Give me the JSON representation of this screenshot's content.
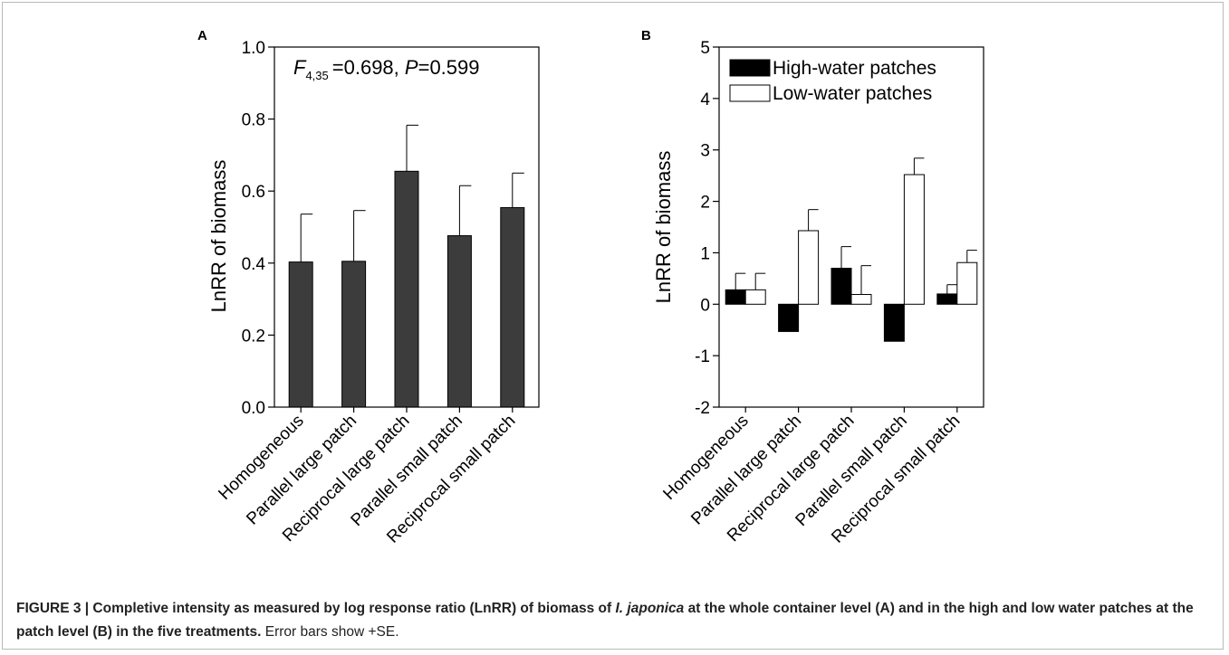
{
  "chart_data": [
    {
      "type": "bar",
      "panel_label": "A",
      "ylabel": "LnRR of biomass",
      "categories": [
        "Homogeneous",
        "Parallel large patch",
        "Reciprocal large patch",
        "Parallel small patch",
        "Reciprocal small patch"
      ],
      "series": [
        {
          "values": [
            0.403,
            0.405,
            0.655,
            0.476,
            0.554
          ],
          "errors": [
            0.133,
            0.141,
            0.128,
            0.139,
            0.096
          ],
          "color": "#3c3c3c"
        }
      ],
      "ylim": [
        0.0,
        1.0
      ],
      "yticks": [
        "0.0",
        "0.2",
        "0.4",
        "0.6",
        "0.8",
        "1.0"
      ],
      "annotation": {
        "f_letter": "F",
        "f_subscript": "4,35",
        "f_value": "=0.698, ",
        "p_letter": "P",
        "p_value": "=0.599"
      }
    },
    {
      "type": "bar",
      "panel_label": "B",
      "ylabel": "LnRR of biomass",
      "categories": [
        "Homogeneous",
        "Parallel large patch",
        "Reciprocal large patch",
        "Parallel small patch",
        "Reciprocal small patch"
      ],
      "series": [
        {
          "name": "High-water patches",
          "color": "#000000",
          "values": [
            0.28,
            -0.53,
            0.7,
            -0.72,
            0.2
          ],
          "errors": [
            0.32,
            0.36,
            0.42,
            0.27,
            0.18
          ]
        },
        {
          "name": "Low-water patches",
          "color": "#ffffff",
          "values": [
            0.28,
            1.43,
            0.19,
            2.52,
            0.81
          ],
          "errors": [
            0.32,
            0.41,
            0.56,
            0.32,
            0.24
          ]
        }
      ],
      "ylim": [
        -2,
        5
      ],
      "yticks": [
        "-2",
        "-1",
        "0",
        "1",
        "2",
        "3",
        "4",
        "5"
      ],
      "legend": "top-left"
    }
  ],
  "caption": {
    "lead": "FIGURE 3 | Completive intensity as measured by log response ratio (LnRR) of biomass of ",
    "species": "I. japonica",
    "lead_end": " at the whole container level (A) and in the high and low water patches at the patch level (B) in the five treatments.",
    "note": " Error bars show +SE."
  }
}
